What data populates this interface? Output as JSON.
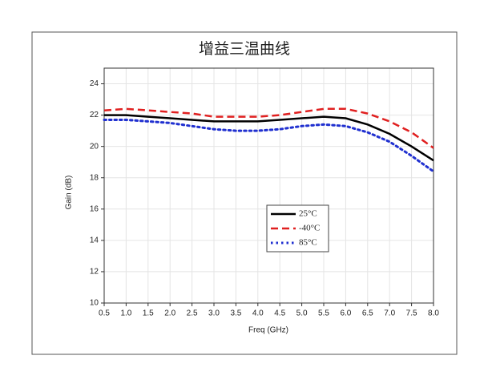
{
  "chart_data": {
    "type": "line",
    "title": "增益三温曲线",
    "x_label": "Freq (GHz)",
    "y_label": "Gain (dB)",
    "x": [
      0.5,
      1.0,
      1.5,
      2.0,
      2.5,
      3.0,
      3.5,
      4.0,
      4.5,
      5.0,
      5.5,
      6.0,
      6.5,
      7.0,
      7.5,
      8.0
    ],
    "series": [
      {
        "name": "25°C",
        "color": "#000000",
        "style": "solid",
        "values": [
          22.0,
          22.0,
          21.9,
          21.8,
          21.7,
          21.6,
          21.6,
          21.6,
          21.7,
          21.8,
          21.9,
          21.8,
          21.4,
          20.8,
          20.0,
          19.1
        ]
      },
      {
        "name": "-40°C",
        "color": "#e02020",
        "style": "dashed",
        "values": [
          22.3,
          22.4,
          22.3,
          22.2,
          22.1,
          21.9,
          21.9,
          21.9,
          22.0,
          22.2,
          22.4,
          22.4,
          22.1,
          21.6,
          20.9,
          19.9
        ]
      },
      {
        "name": "85°C",
        "color": "#2030d0",
        "style": "dotted",
        "values": [
          21.7,
          21.7,
          21.6,
          21.5,
          21.3,
          21.1,
          21.0,
          21.0,
          21.1,
          21.3,
          21.4,
          21.3,
          20.9,
          20.3,
          19.4,
          18.4
        ]
      }
    ],
    "xlim": [
      0.5,
      8.0
    ],
    "xticks": [
      0.5,
      {
        "value": 1.0,
        "label": "1.0"
      },
      1.5,
      {
        "value": 2.0,
        "label": "2.0"
      },
      2.5,
      {
        "value": 3.0,
        "label": "3.0"
      },
      3.5,
      {
        "value": 4.0,
        "label": "4.0"
      },
      4.5,
      {
        "value": 5.0,
        "label": "5.0"
      },
      5.5,
      {
        "value": 6.0,
        "label": "6.0"
      },
      6.5,
      {
        "value": 7.0,
        "label": "7.0"
      },
      7.5,
      {
        "value": 8.0,
        "label": "8.0"
      }
    ],
    "ylim": [
      10,
      25
    ],
    "yticks": [
      10,
      12,
      14,
      16,
      18,
      20,
      22,
      24
    ],
    "grid": true,
    "legend": "center"
  }
}
